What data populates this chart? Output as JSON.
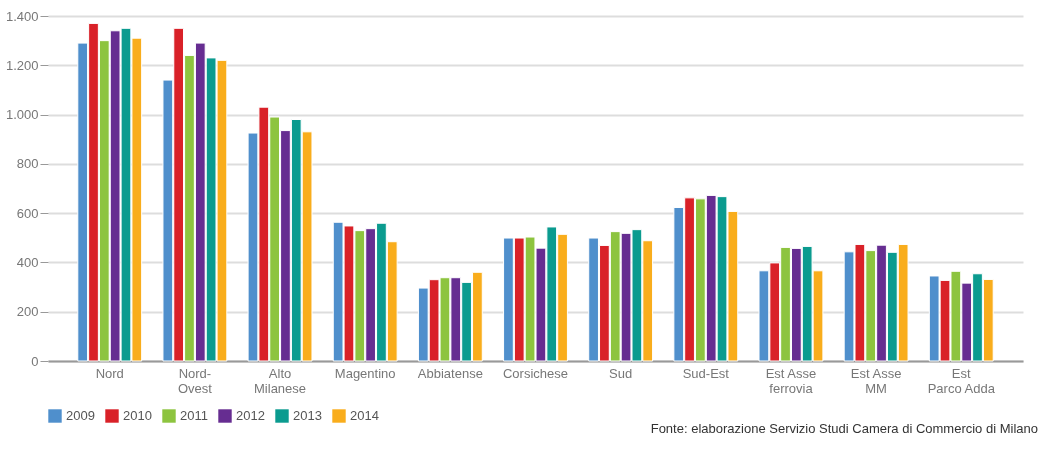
{
  "chart_data": {
    "type": "bar",
    "categories": [
      "Nord",
      "Nord-\nOvest",
      "Alto\nMilanese",
      "Magentino",
      "Abbiatense",
      "Corsichese",
      "Sud",
      "Sud-Est",
      "Est Asse\nferrovia",
      "Est Asse\nMM",
      "Est\nParco Adda"
    ],
    "series": [
      {
        "name": "2009",
        "color": "#4f8fcc",
        "values": [
          1290,
          1140,
          925,
          563,
          296,
          499,
          499,
          623,
          366,
          443,
          345
        ]
      },
      {
        "name": "2010",
        "color": "#d92128",
        "values": [
          1370,
          1350,
          1030,
          548,
          330,
          499,
          469,
          662,
          398,
          473,
          327
        ]
      },
      {
        "name": "2011",
        "color": "#8dc43f",
        "values": [
          1300,
          1240,
          990,
          529,
          338,
          503,
          525,
          658,
          461,
          448,
          364
        ]
      },
      {
        "name": "2012",
        "color": "#662d91",
        "values": [
          1340,
          1290,
          935,
          537,
          338,
          458,
          518,
          672,
          457,
          470,
          316
        ]
      },
      {
        "name": "2013",
        "color": "#0b9b8f",
        "values": [
          1350,
          1230,
          980,
          559,
          319,
          544,
          533,
          667,
          465,
          441,
          354
        ]
      },
      {
        "name": "2014",
        "color": "#f9ad1c",
        "values": [
          1310,
          1220,
          930,
          484,
          360,
          514,
          488,
          607,
          366,
          473,
          331
        ]
      }
    ],
    "ylim": [
      0,
      1400
    ],
    "yticks": [
      0,
      200,
      400,
      600,
      800,
      {
        "value": 1000,
        "label": "1.000"
      },
      {
        "value": 1200,
        "label": "1.200"
      },
      {
        "value": 1400,
        "label": "1.400"
      }
    ],
    "grid": "y",
    "legend": "bottom left",
    "annotations": [
      "Fonte: elaborazione Servizio Studi Camera di Commercio di Milano"
    ]
  }
}
